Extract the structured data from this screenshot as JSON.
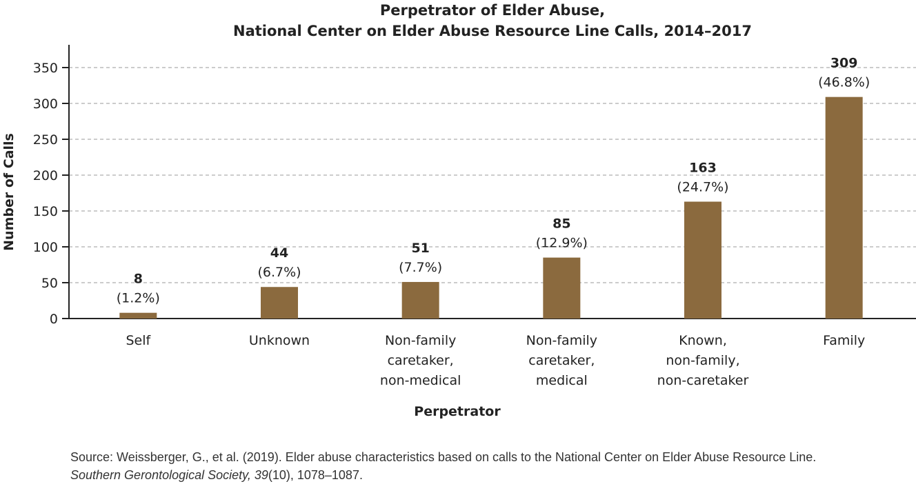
{
  "chart_data": {
    "type": "bar",
    "title": [
      "Perpetrator of Elder Abuse,",
      "National Center on Elder Abuse Resource Line Calls, 2014–2017"
    ],
    "xlabel": "Perpetrator",
    "ylabel": "Number of Calls",
    "ylim": [
      0,
      350
    ],
    "yticks": [
      0,
      50,
      100,
      150,
      200,
      250,
      300,
      350
    ],
    "grid": "horizontal dashed",
    "bar_color": "#8b6a3e",
    "categories": [
      [
        "Self"
      ],
      [
        "Unknown"
      ],
      [
        "Non-family",
        "caretaker,",
        "non-medical"
      ],
      [
        "Non-family",
        "caretaker,",
        "medical"
      ],
      [
        "Known,",
        "non-family,",
        "non-caretaker"
      ],
      [
        "Family"
      ]
    ],
    "values": [
      8,
      44,
      51,
      85,
      163,
      309
    ],
    "percent_labels": [
      "(1.2%)",
      "(6.7%)",
      "(7.7%)",
      "(12.9%)",
      "(24.7%)",
      "(46.8%)"
    ]
  },
  "source": {
    "prefix": "Source: Weissberger, G., et al. (2019). Elder abuse characteristics based on calls to the National Center on Elder Abuse Resource Line. ",
    "journal": "Southern Gerontological Society, 39",
    "issue": "(10), 1078–1087."
  }
}
